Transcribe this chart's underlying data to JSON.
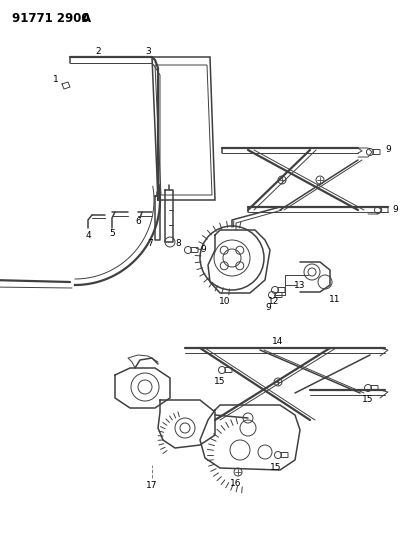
{
  "title": "91771 2900A",
  "bg_color": "#ffffff",
  "line_color": "#404040",
  "label_color": "#000000",
  "figsize": [
    4.03,
    5.33
  ],
  "dpi": 100,
  "lw_thin": 0.7,
  "lw_med": 1.1,
  "lw_thick": 1.6
}
